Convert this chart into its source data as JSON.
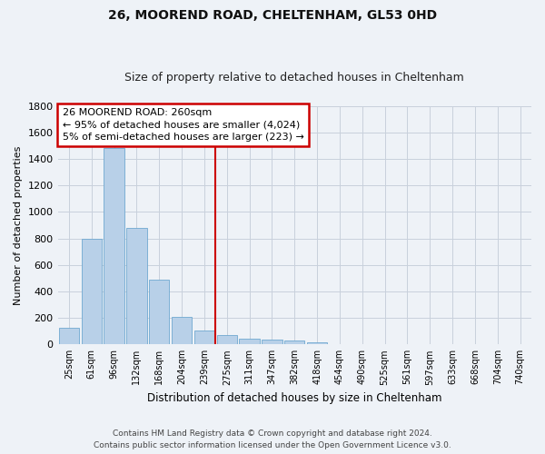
{
  "title": "26, MOOREND ROAD, CHELTENHAM, GL53 0HD",
  "subtitle": "Size of property relative to detached houses in Cheltenham",
  "xlabel": "Distribution of detached houses by size in Cheltenham",
  "ylabel": "Number of detached properties",
  "categories": [
    "25sqm",
    "61sqm",
    "96sqm",
    "132sqm",
    "168sqm",
    "204sqm",
    "239sqm",
    "275sqm",
    "311sqm",
    "347sqm",
    "382sqm",
    "418sqm",
    "454sqm",
    "490sqm",
    "525sqm",
    "561sqm",
    "597sqm",
    "633sqm",
    "668sqm",
    "704sqm",
    "740sqm"
  ],
  "values": [
    125,
    800,
    1480,
    880,
    490,
    205,
    105,
    70,
    45,
    35,
    28,
    15,
    5,
    2,
    1,
    0,
    0,
    0,
    0,
    0,
    0
  ],
  "bar_color": "#b8d0e8",
  "bar_edgecolor": "#6fa8d0",
  "vline_color": "#cc0000",
  "vline_x": 7,
  "annotation_text": "26 MOOREND ROAD: 260sqm\n← 95% of detached houses are smaller (4,024)\n5% of semi-detached houses are larger (223) →",
  "annotation_box_edgecolor": "#cc0000",
  "ylim": [
    0,
    1800
  ],
  "yticks": [
    0,
    200,
    400,
    600,
    800,
    1000,
    1200,
    1400,
    1600,
    1800
  ],
  "background_color": "#eef2f7",
  "grid_color": "#c8d0dc",
  "title_fontsize": 10,
  "subtitle_fontsize": 9,
  "footer": "Contains HM Land Registry data © Crown copyright and database right 2024.\nContains public sector information licensed under the Open Government Licence v3.0.",
  "footer_fontsize": 6.5
}
